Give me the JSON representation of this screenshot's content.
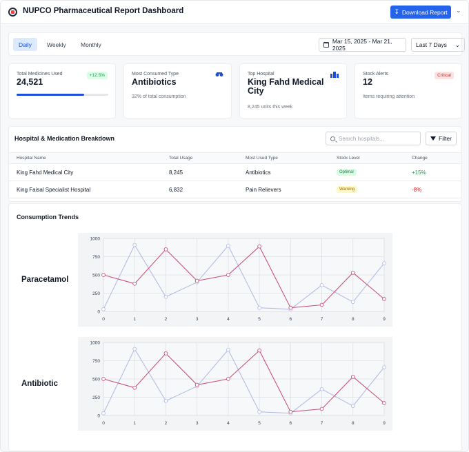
{
  "header": {
    "title": "NUPCO Pharmaceutical Report Dashboard",
    "download_label": "Download Report"
  },
  "toolbar": {
    "tabs": [
      {
        "label": "Daily",
        "active": true
      },
      {
        "label": "Weekly",
        "active": false
      },
      {
        "label": "Monthly",
        "active": false
      }
    ],
    "date_range": "Mar 15, 2025 - Mar 21, 2025",
    "range_select": "Last 7 Days"
  },
  "kpis": {
    "medicines": {
      "label": "Total Medicines Used",
      "value": "24,521",
      "badge": "+12.5%",
      "progress": 0.74
    },
    "consumed": {
      "label": "Most Consumed Type",
      "value": "Antibiotics",
      "sub": "32% of total consumption"
    },
    "hospital": {
      "label": "Top Hospital",
      "value": "King Fahd Medical City",
      "sub": "8,245 units this week"
    },
    "alerts": {
      "label": "Stock Alerts",
      "value": "12",
      "badge": "Critical",
      "sub": "Items requiring attention"
    }
  },
  "breakdown": {
    "title": "Hospital & Medication Breakdown",
    "search_placeholder": "Search hospitals...",
    "filter_label": "Filter",
    "columns": [
      "Hospital Name",
      "Total Usage",
      "Most Used Type",
      "Stock Level",
      "Change"
    ],
    "rows": [
      {
        "name": "King Fahd Medical City",
        "usage": "8,245",
        "type": "Antibiotics",
        "stock": "Optimal",
        "change": "+15%"
      },
      {
        "name": "King Faisal Specialist Hospital",
        "usage": "6,832",
        "type": "Pain Relievers",
        "stock": "Warning",
        "change": "-8%"
      }
    ]
  },
  "trends": {
    "title": "Consumption Trends"
  },
  "colors": {
    "accent": "#2563eb",
    "series_a": "#b4bce6",
    "series_b": "#c8547a"
  },
  "chart_data": [
    {
      "type": "line",
      "label": "Paracetamol",
      "x": [
        0,
        1,
        2,
        3,
        4,
        5,
        6,
        7,
        8,
        9
      ],
      "ylim": [
        0,
        1000
      ],
      "yticks": [
        0,
        250,
        500,
        750,
        1000
      ],
      "grid": true,
      "series": [
        {
          "values": [
            30,
            910,
            200,
            400,
            900,
            50,
            30,
            360,
            130,
            660
          ]
        },
        {
          "values": [
            500,
            380,
            850,
            420,
            500,
            890,
            50,
            90,
            530,
            170
          ]
        }
      ]
    },
    {
      "type": "line",
      "label": "Antibiotic",
      "x": [
        0,
        1,
        2,
        3,
        4,
        5,
        6,
        7,
        8,
        9
      ],
      "ylim": [
        0,
        1000
      ],
      "yticks": [
        0,
        250,
        500,
        750,
        1000
      ],
      "grid": true,
      "series": [
        {
          "values": [
            30,
            910,
            200,
            400,
            900,
            50,
            30,
            360,
            130,
            660
          ]
        },
        {
          "values": [
            500,
            380,
            850,
            420,
            500,
            890,
            50,
            90,
            530,
            170
          ]
        }
      ]
    }
  ]
}
